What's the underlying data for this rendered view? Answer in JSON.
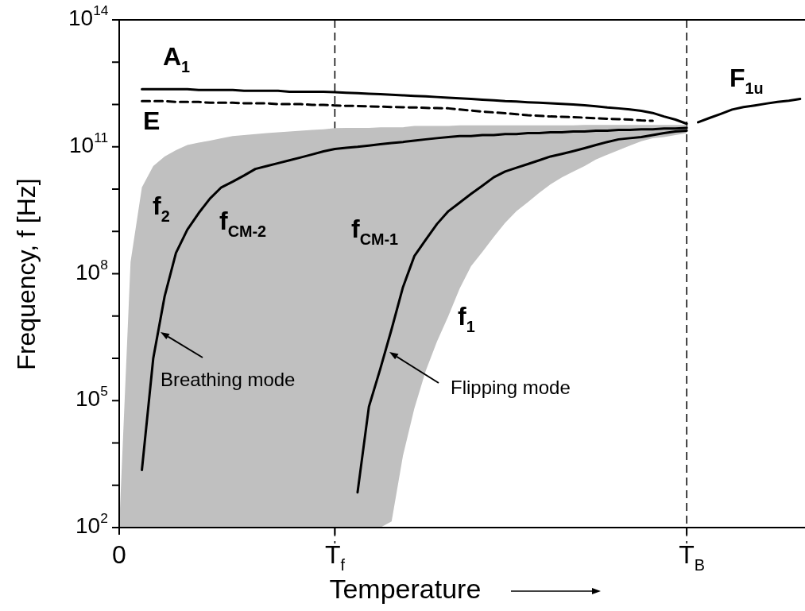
{
  "chart_data": {
    "type": "line",
    "xlabel": "Temperature",
    "ylabel": "Frequency, f [Hz]",
    "log": "y",
    "grid": false,
    "legend": false,
    "marker": "none",
    "categories": [
      "0",
      null,
      null,
      null,
      null,
      null,
      null,
      null,
      null,
      null,
      null,
      null,
      null,
      null,
      null,
      null,
      null,
      null,
      null,
      "T$_{f}$",
      null,
      null,
      null,
      null,
      null,
      null,
      null,
      null,
      null,
      null,
      null,
      null,
      null,
      null,
      null,
      null,
      null,
      null,
      null,
      null,
      null,
      null,
      null,
      null,
      null,
      null,
      null,
      null,
      null,
      null,
      "T$_{B}$",
      null,
      null,
      null,
      null,
      null,
      null,
      null,
      null,
      null,
      null
    ],
    "ylim": [
      100,
      100000000000000.0
    ],
    "yticks": [
      {
        "value": 100,
        "label": "10$^{2}$"
      },
      {
        "value": 1000,
        "label": null
      },
      {
        "value": 10000,
        "label": null
      },
      {
        "value": 100000,
        "label": "10$^{5}$"
      },
      {
        "value": 1000000,
        "label": null
      },
      {
        "value": 10000000,
        "label": null
      },
      {
        "value": 100000000,
        "label": "10$^{8}$"
      },
      {
        "value": 1000000000,
        "label": null
      },
      {
        "value": 10000000000,
        "label": null
      },
      {
        "value": 100000000000,
        "label": "10$^{11}$"
      },
      {
        "value": 1000000000000,
        "label": null
      },
      {
        "value": 10000000000000,
        "label": null
      },
      {
        "value": 100000000000000,
        "label": "10$^{14}$"
      }
    ],
    "series": [
      {
        "color": "#000000",
        "line_style": "solid",
        "upper": [
          100,
          190000000.0,
          11000000000.0,
          35000000000.0,
          59000000000.0,
          83000000000.0,
          110000000000.0,
          126000000000.0,
          140000000000.0,
          160000000000.0,
          180000000000.0,
          190000000000.0,
          200000000000.0,
          210000000000.0,
          220000000000.0,
          230000000000.0,
          240000000000.0,
          250000000000.0,
          260000000000.0,
          275000000000.0,
          280000000000.0,
          280000000000.0,
          280000000000.0,
          290000000000.0,
          290000000000.0,
          290000000000.0,
          310000000000.0,
          310000000000.0,
          310000000000.0,
          310000000000.0,
          320000000000.0,
          320000000000.0,
          320000000000.0,
          320000000000.0,
          320000000000.0,
          320000000000.0,
          320000000000.0,
          320000000000.0,
          320000000000.0,
          320000000000.0,
          320000000000.0,
          330000000000.0,
          330000000000.0,
          330000000000.0,
          330000000000.0,
          330000000000.0,
          330000000000.0,
          330000000000.0,
          330000000000.0,
          330000000000.0,
          330000000000.0,
          null,
          null,
          null,
          null,
          null,
          null,
          null,
          null,
          null,
          null
        ],
        "lower": [
          100,
          100,
          100,
          100,
          100,
          100,
          100,
          100,
          100,
          100,
          100,
          100,
          100,
          100,
          100,
          100,
          100,
          100,
          100,
          100,
          100,
          100,
          100,
          100,
          140.0,
          5000.0,
          65000.0,
          500000.0,
          2500000.0,
          10000000.0,
          45000000.0,
          150000000.0,
          330000000.0,
          740000000.0,
          1600000000.0,
          3000000000.0,
          4900000000.0,
          8100000000.0,
          13000000000.0,
          19000000000.0,
          26000000000.0,
          35000000000.0,
          50000000000.0,
          65000000000.0,
          83000000000.0,
          107000000000.0,
          135000000000.0,
          160000000000.0,
          170000000000.0,
          190000000000.0,
          210000000000.0,
          null,
          null,
          null,
          null,
          null,
          null,
          null,
          null,
          null,
          null
        ],
        "values": [
          null,
          null,
          2300.0,
          1000000.0,
          29000000.0,
          310000000.0,
          1100000000.0,
          2700000000.0,
          6000000000.0,
          11000000000.0,
          15000000000.0,
          21000000000.0,
          30000000000.0,
          35000000000.0,
          41000000000.0,
          48000000000.0,
          56000000000.0,
          66000000000.0,
          78000000000.0,
          89000000000.0,
          95000000000.0,
          100000000000.0,
          107000000000.0,
          115000000000.0,
          123000000000.0,
          130000000000.0,
          140000000000.0,
          150000000000.0,
          160000000000.0,
          170000000000.0,
          180000000000.0,
          180000000000.0,
          190000000000.0,
          190000000000.0,
          200000000000.0,
          200000000000.0,
          210000000000.0,
          210000000000.0,
          220000000000.0,
          220000000000.0,
          230000000000.0,
          230000000000.0,
          240000000000.0,
          240000000000.0,
          250000000000.0,
          250000000000.0,
          260000000000.0,
          260000000000.0,
          270000000000.0,
          270000000000.0,
          280000000000.0,
          null,
          null,
          null,
          null,
          null,
          null,
          null,
          null,
          null,
          null
        ]
      },
      {
        "color": "#000000",
        "line_style": "solid",
        "values": [
          null,
          null,
          null,
          null,
          null,
          null,
          null,
          null,
          null,
          null,
          null,
          null,
          null,
          null,
          null,
          null,
          null,
          null,
          null,
          null,
          null,
          680.0,
          72000.0,
          560000.0,
          4900000.0,
          48000000.0,
          260000000.0,
          630000000.0,
          1500000000.0,
          3000000000.0,
          4800000000.0,
          7700000000.0,
          12000000000.0,
          19000000000.0,
          26000000000.0,
          32000000000.0,
          39000000000.0,
          48000000000.0,
          59000000000.0,
          68000000000.0,
          79000000000.0,
          93000000000.0,
          110000000000.0,
          130000000000.0,
          150000000000.0,
          160000000000.0,
          170000000000.0,
          190000000000.0,
          210000000000.0,
          230000000000.0,
          240000000000.0,
          null,
          null,
          null,
          null,
          null,
          null,
          null,
          null,
          null,
          null
        ]
      },
      {
        "color": "#000000",
        "line_style": "solid",
        "values": [
          null,
          null,
          2300000000000.0,
          2300000000000.0,
          2300000000000.0,
          2300000000000.0,
          2300000000000.0,
          2200000000000.0,
          2200000000000.0,
          2200000000000.0,
          2200000000000.0,
          2100000000000.0,
          2100000000000.0,
          2100000000000.0,
          2100000000000.0,
          2000000000000.0,
          2000000000000.0,
          2000000000000.0,
          2000000000000.0,
          1950000000000.0,
          1900000000000.0,
          1850000000000.0,
          1800000000000.0,
          1750000000000.0,
          1700000000000.0,
          1650000000000.0,
          1600000000000.0,
          1550000000000.0,
          1500000000000.0,
          1450000000000.0,
          1400000000000.0,
          1350000000000.0,
          1300000000000.0,
          1250000000000.0,
          1200000000000.0,
          1170000000000.0,
          1130000000000.0,
          1100000000000.0,
          1070000000000.0,
          1030000000000.0,
          1000000000000.0,
          960000000000.0,
          910000000000.0,
          850000000000.0,
          810000000000.0,
          760000000000.0,
          710000000000.0,
          630000000000.0,
          520000000000.0,
          440000000000.0,
          350000000000.0,
          null,
          null,
          null,
          null,
          null,
          null,
          null,
          null,
          null,
          null
        ]
      },
      {
        "color": "#000000",
        "line_style": "dashed",
        "values": [
          null,
          null,
          1200000000000.0,
          1200000000000.0,
          1200000000000.0,
          1150000000000.0,
          1150000000000.0,
          1150000000000.0,
          1100000000000.0,
          1100000000000.0,
          1100000000000.0,
          1070000000000.0,
          1070000000000.0,
          1070000000000.0,
          1020000000000.0,
          1020000000000.0,
          1020000000000.0,
          980000000000.0,
          980000000000.0,
          950000000000.0,
          930000000000.0,
          920000000000.0,
          900000000000.0,
          890000000000.0,
          870000000000.0,
          860000000000.0,
          850000000000.0,
          830000000000.0,
          820000000000.0,
          810000000000.0,
          760000000000.0,
          720000000000.0,
          680000000000.0,
          650000000000.0,
          620000000000.0,
          590000000000.0,
          560000000000.0,
          540000000000.0,
          520000000000.0,
          510000000000.0,
          500000000000.0,
          490000000000.0,
          470000000000.0,
          460000000000.0,
          450000000000.0,
          440000000000.0,
          420000000000.0,
          410000000000.0,
          null,
          null,
          null,
          null,
          null,
          null,
          null,
          null,
          null,
          null,
          null,
          null,
          null
        ]
      },
      {
        "color": "#000000",
        "line_style": "solid",
        "values": [
          null,
          null,
          null,
          null,
          null,
          null,
          null,
          null,
          null,
          null,
          null,
          null,
          null,
          null,
          null,
          null,
          null,
          null,
          null,
          null,
          null,
          null,
          null,
          null,
          null,
          null,
          null,
          null,
          null,
          null,
          null,
          null,
          null,
          null,
          null,
          null,
          null,
          null,
          null,
          null,
          null,
          null,
          null,
          null,
          null,
          null,
          null,
          null,
          null,
          null,
          null,
          380000000000.0,
          480000000000.0,
          600000000000.0,
          760000000000.0,
          870000000000.0,
          950000000000.0,
          1050000000000.0,
          1150000000000.0,
          1230000000000.0,
          1350000000000.0
        ]
      }
    ],
    "ref_lines": [
      {
        "axis": "x",
        "value": "T$_{f}$",
        "color": "#000000",
        "line_style": "dashed"
      },
      {
        "axis": "x",
        "value": "T$_{B}$",
        "color": "#000000",
        "line_style": "dashed"
      }
    ],
    "annotations": [
      "A$_{1}$",
      "E",
      "F$_{1u}$",
      "f$_{2}$",
      "f$_{CM-2}$",
      "f$_{CM-1}$",
      "f$_{1}$",
      "Breathing mode",
      "Flipping mode"
    ]
  }
}
